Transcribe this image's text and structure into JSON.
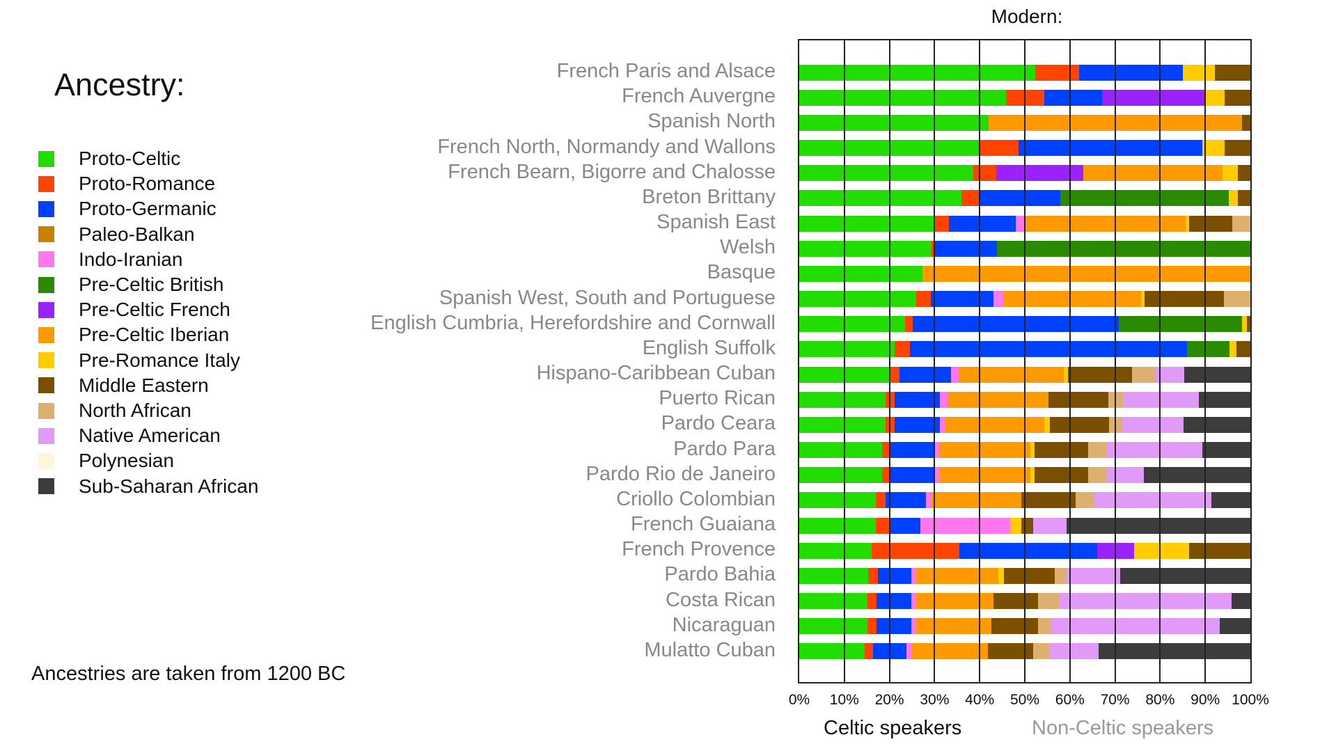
{
  "legend": {
    "title": "Ancestry:",
    "items": [
      {
        "label": "Proto-Celtic",
        "color": "#22dd00"
      },
      {
        "label": "Proto-Romance",
        "color": "#ff4400"
      },
      {
        "label": "Proto-Germanic",
        "color": "#0040ff"
      },
      {
        "label": "Paleo-Balkan",
        "color": "#c88000"
      },
      {
        "label": "Indo-Iranian",
        "color": "#ff77ee"
      },
      {
        "label": "Pre-Celtic British",
        "color": "#2a8a00"
      },
      {
        "label": "Pre-Celtic French",
        "color": "#9a22ff"
      },
      {
        "label": "Pre-Celtic Iberian",
        "color": "#ff9900"
      },
      {
        "label": "Pre-Romance Italy",
        "color": "#ffcc00"
      },
      {
        "label": "Middle Eastern",
        "color": "#7a4f00"
      },
      {
        "label": "North African",
        "color": "#ddb070"
      },
      {
        "label": "Native American",
        "color": "#e29af8"
      },
      {
        "label": "Polynesian",
        "color": "#fdf7d8"
      },
      {
        "label": "Sub-Saharan African",
        "color": "#3c3c3c"
      }
    ]
  },
  "footnote": "Ancestries are taken from 1200 BC",
  "chart_data": {
    "type": "bar",
    "orientation": "horizontal-stacked-100",
    "title": "Modern:",
    "xlim": [
      0,
      100
    ],
    "xticks": [
      "0%",
      "10%",
      "20%",
      "30%",
      "40%",
      "50%",
      "60%",
      "70%",
      "80%",
      "90%",
      "100%"
    ],
    "grid": true,
    "xlabel_left": "Celtic speakers",
    "xlabel_right": "Non-Celtic speakers",
    "rows": [
      {
        "label": "French Paris and Alsace",
        "segments": [
          [
            0,
            52.3
          ],
          [
            1,
            9.7
          ],
          [
            2,
            23
          ],
          [
            8,
            7.2
          ],
          [
            9,
            7.8
          ]
        ]
      },
      {
        "label": "French Auvergne",
        "segments": [
          [
            0,
            45.9
          ],
          [
            1,
            8.4
          ],
          [
            2,
            12.8
          ],
          [
            6,
            22.7
          ],
          [
            8,
            4.5
          ],
          [
            9,
            5.7
          ]
        ]
      },
      {
        "label": "Spanish North",
        "segments": [
          [
            0,
            42
          ],
          [
            7,
            56.2
          ],
          [
            9,
            1.8
          ]
        ]
      },
      {
        "label": "French North, Normandy and Wallons",
        "segments": [
          [
            0,
            40.1
          ],
          [
            1,
            8.5
          ],
          [
            2,
            40.7
          ],
          [
            8,
            5
          ],
          [
            9,
            5.7
          ]
        ]
      },
      {
        "label": "French Bearn, Bigorre and Chalosse",
        "segments": [
          [
            0,
            38.6
          ],
          [
            1,
            5
          ],
          [
            6,
            19.4
          ],
          [
            7,
            30.9
          ],
          [
            8,
            3.3
          ],
          [
            9,
            2.8
          ]
        ]
      },
      {
        "label": "Breton Brittany",
        "segments": [
          [
            0,
            35.9
          ],
          [
            1,
            4.1
          ],
          [
            2,
            17.9
          ],
          [
            5,
            37.3
          ],
          [
            8,
            2
          ],
          [
            9,
            2.8
          ]
        ]
      },
      {
        "label": "Spanish East",
        "segments": [
          [
            0,
            30
          ],
          [
            1,
            3.2
          ],
          [
            2,
            14.8
          ],
          [
            4,
            2
          ],
          [
            7,
            35.7
          ],
          [
            8,
            0.8
          ],
          [
            9,
            9.5
          ],
          [
            10,
            4
          ]
        ]
      },
      {
        "label": "Welsh",
        "segments": [
          [
            0,
            29.3
          ],
          [
            1,
            0.6
          ],
          [
            2,
            14
          ],
          [
            5,
            56.1
          ]
        ]
      },
      {
        "label": "Basque",
        "segments": [
          [
            0,
            27.3
          ],
          [
            7,
            72.7
          ]
        ]
      },
      {
        "label": "Spanish West, South and Portuguese",
        "segments": [
          [
            0,
            26
          ],
          [
            1,
            3.1
          ],
          [
            2,
            14
          ],
          [
            4,
            2.3
          ],
          [
            7,
            30.3
          ],
          [
            8,
            0.8
          ],
          [
            9,
            17.7
          ],
          [
            10,
            5.8
          ]
        ]
      },
      {
        "label": "English Cumbria, Herefordshire and Cornwall",
        "segments": [
          [
            0,
            23.4
          ],
          [
            1,
            1.8
          ],
          [
            2,
            45.7
          ],
          [
            5,
            27.3
          ],
          [
            8,
            1
          ],
          [
            9,
            0.8
          ]
        ]
      },
      {
        "label": "English Suffolk",
        "segments": [
          [
            0,
            21.2
          ],
          [
            1,
            3.3
          ],
          [
            2,
            61.5
          ],
          [
            5,
            9.3
          ],
          [
            8,
            1.6
          ],
          [
            9,
            3.1
          ]
        ]
      },
      {
        "label": "Hispano-Caribbean Cuban",
        "segments": [
          [
            0,
            20.2
          ],
          [
            1,
            2
          ],
          [
            2,
            11.4
          ],
          [
            4,
            1.7
          ],
          [
            7,
            23.3
          ],
          [
            8,
            0.9
          ],
          [
            9,
            14.2
          ],
          [
            10,
            5.2
          ],
          [
            11,
            6.5
          ],
          [
            13,
            14.6
          ]
        ]
      },
      {
        "label": "Puerto Rican",
        "segments": [
          [
            0,
            19.2
          ],
          [
            1,
            2
          ],
          [
            2,
            9.9
          ],
          [
            4,
            1.8
          ],
          [
            7,
            22.4
          ],
          [
            9,
            13.3
          ],
          [
            10,
            3.1
          ],
          [
            11,
            16.9
          ],
          [
            13,
            11.4
          ]
        ]
      },
      {
        "label": "Pardo Ceara",
        "segments": [
          [
            0,
            19.1
          ],
          [
            1,
            2
          ],
          [
            2,
            10
          ],
          [
            4,
            1.3
          ],
          [
            7,
            21.9
          ],
          [
            8,
            1.3
          ],
          [
            9,
            13
          ],
          [
            10,
            3
          ],
          [
            11,
            13.6
          ],
          [
            13,
            14.8
          ]
        ]
      },
      {
        "label": "Pardo Para",
        "segments": [
          [
            0,
            18.4
          ],
          [
            1,
            1.5
          ],
          [
            2,
            10.2
          ],
          [
            4,
            1
          ],
          [
            7,
            20.2
          ],
          [
            8,
            0.8
          ],
          [
            9,
            12
          ],
          [
            10,
            4
          ],
          [
            11,
            21.2
          ],
          [
            13,
            10.7
          ]
        ]
      },
      {
        "label": "Pardo Rio de Janeiro",
        "segments": [
          [
            0,
            18.4
          ],
          [
            1,
            1.5
          ],
          [
            2,
            10.2
          ],
          [
            4,
            1
          ],
          [
            7,
            20.2
          ],
          [
            8,
            0.8
          ],
          [
            9,
            12
          ],
          [
            10,
            4
          ],
          [
            11,
            8.3
          ],
          [
            13,
            23.6
          ]
        ]
      },
      {
        "label": "Criollo Colombian",
        "segments": [
          [
            0,
            17
          ],
          [
            1,
            2.2
          ],
          [
            2,
            8.9
          ],
          [
            4,
            1.2
          ],
          [
            7,
            19.9
          ],
          [
            9,
            12.1
          ],
          [
            10,
            4.2
          ],
          [
            11,
            25.8
          ],
          [
            13,
            8.7
          ]
        ]
      },
      {
        "label": "French Guaiana",
        "segments": [
          [
            0,
            17
          ],
          [
            1,
            2.9
          ],
          [
            2,
            6.9
          ],
          [
            4,
            20
          ],
          [
            8,
            2.4
          ],
          [
            9,
            2.6
          ],
          [
            11,
            7.5
          ],
          [
            13,
            40.7
          ]
        ]
      },
      {
        "label": "French Provence",
        "segments": [
          [
            0,
            16.1
          ],
          [
            1,
            19.4
          ],
          [
            2,
            30.5
          ],
          [
            6,
            8.2
          ],
          [
            8,
            12.3
          ],
          [
            9,
            13.5
          ]
        ]
      },
      {
        "label": "Pardo Bahia",
        "segments": [
          [
            0,
            15.3
          ],
          [
            1,
            2.1
          ],
          [
            2,
            7.5
          ],
          [
            4,
            1.1
          ],
          [
            7,
            18.1
          ],
          [
            8,
            1.2
          ],
          [
            9,
            11.3
          ],
          [
            10,
            2.6
          ],
          [
            11,
            12
          ],
          [
            13,
            28.8
          ]
        ]
      },
      {
        "label": "Costa Rican",
        "segments": [
          [
            0,
            15.1
          ],
          [
            1,
            2
          ],
          [
            2,
            7.8
          ],
          [
            4,
            0.9
          ],
          [
            7,
            17.3
          ],
          [
            9,
            9.9
          ],
          [
            10,
            4.6
          ],
          [
            11,
            38.3
          ],
          [
            13,
            4.1
          ]
        ]
      },
      {
        "label": "Nicaraguan",
        "segments": [
          [
            0,
            15.1
          ],
          [
            1,
            2.1
          ],
          [
            2,
            7.7
          ],
          [
            4,
            1.1
          ],
          [
            7,
            16.6
          ],
          [
            9,
            10.4
          ],
          [
            10,
            2.9
          ],
          [
            11,
            37.3
          ],
          [
            13,
            6.8
          ]
        ]
      },
      {
        "label": "Mulatto Cuban",
        "segments": [
          [
            0,
            14.5
          ],
          [
            1,
            1.8
          ],
          [
            2,
            7.5
          ],
          [
            4,
            1.2
          ],
          [
            7,
            16.8
          ],
          [
            9,
            10
          ],
          [
            10,
            3.6
          ],
          [
            11,
            11
          ],
          [
            13,
            33.6
          ]
        ]
      }
    ]
  }
}
